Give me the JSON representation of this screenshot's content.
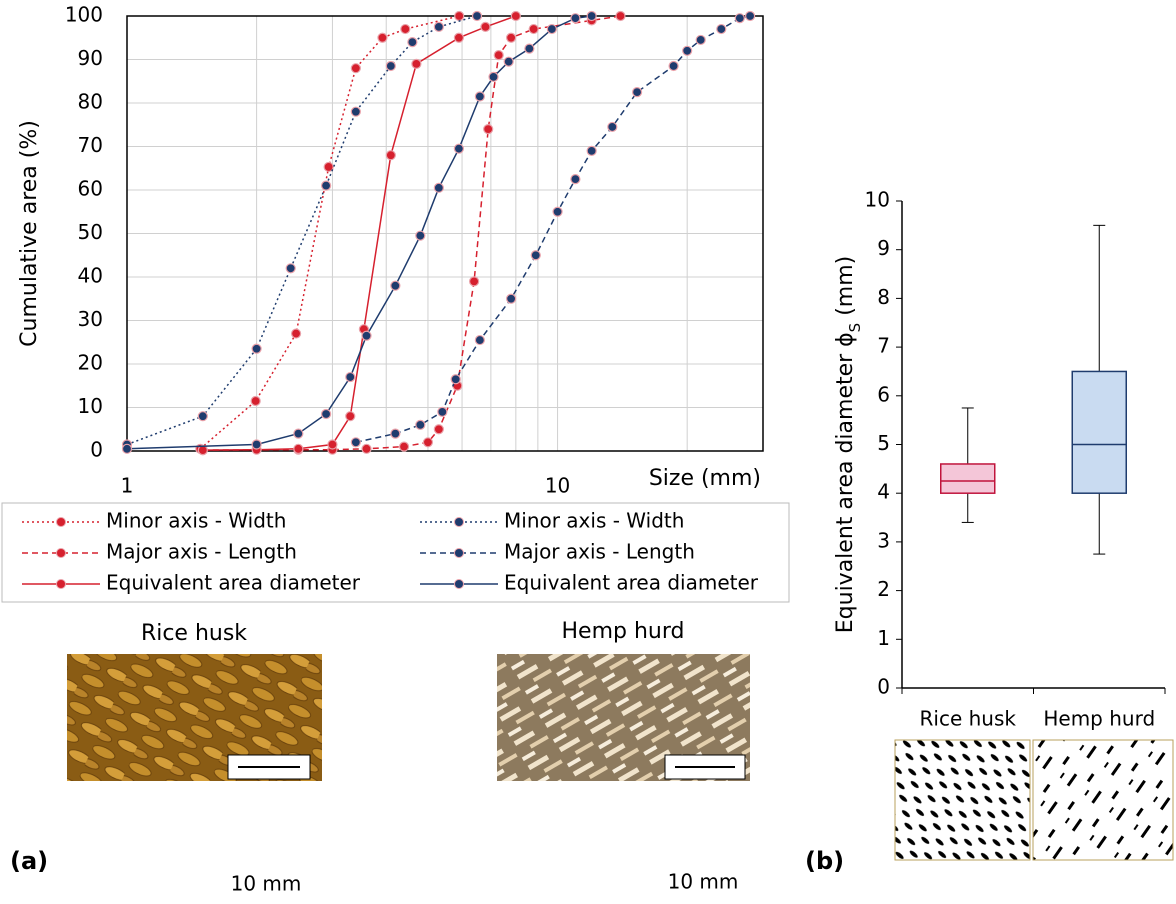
{
  "chart_data": [
    {
      "type": "line",
      "xscale": "log",
      "ylabel": "Cumulative area (%)",
      "xlabel": "Size (mm)",
      "xlim": [
        1,
        30
      ],
      "xticks": [
        1,
        10
      ],
      "xgrid": [
        2,
        3,
        4,
        5,
        6,
        7,
        8,
        9,
        20,
        30
      ],
      "ylim": [
        0,
        100
      ],
      "yticks": [
        0,
        10,
        20,
        30,
        40,
        50,
        60,
        70,
        80,
        90,
        100
      ],
      "grid": true,
      "series": [
        {
          "name": "Minor axis - Width",
          "color": "#d6202e",
          "dash": "dotted",
          "x": [
            1.48,
            1.99,
            2.47,
            2.94,
            3.4,
            3.92,
            4.43,
            5.91
          ],
          "values": [
            0.5,
            11.5,
            27,
            65.3,
            88,
            95,
            97,
            100
          ]
        },
        {
          "name": "Major axis - Length",
          "color": "#d6202e",
          "dash": "dashed",
          "x": [
            1.5,
            2.5,
            3,
            3.6,
            4.4,
            5,
            5.3,
            5.85,
            6.4,
            6.9,
            7.3,
            7.8,
            8.8,
            12,
            14
          ],
          "values": [
            0.2,
            0.3,
            0.3,
            0.5,
            1,
            2,
            5,
            15,
            39,
            74,
            91,
            95,
            97,
            99,
            100
          ]
        },
        {
          "name": "Equivalent area diameter",
          "color": "#d6202e",
          "dash": "solid",
          "x": [
            1.5,
            2,
            2.5,
            3,
            3.3,
            3.55,
            4.1,
            4.7,
            5.9,
            6.8,
            8
          ],
          "values": [
            0.2,
            0.3,
            0.5,
            1.5,
            8,
            28,
            68,
            89,
            95,
            97.5,
            100
          ]
        },
        {
          "name": "Minor axis - Width",
          "color": "#1f3c6e",
          "dash": "dotted",
          "x": [
            1,
            1.5,
            2,
            2.4,
            2.9,
            3.4,
            4.1,
            4.6,
            5.3,
            6.5
          ],
          "values": [
            1.5,
            8,
            23.5,
            42,
            61,
            78,
            88.5,
            94,
            97.5,
            100
          ]
        },
        {
          "name": "Major axis - Length",
          "color": "#1f3c6e",
          "dash": "dashed",
          "x": [
            3.4,
            4.2,
            4.8,
            5.4,
            5.8,
            6.6,
            7.8,
            8.9,
            10,
            11,
            12,
            13.4,
            15.3,
            18.6,
            20,
            21.5,
            24,
            26.5,
            28
          ],
          "values": [
            2,
            4,
            6,
            9,
            16.5,
            25.5,
            35,
            45,
            55,
            62.5,
            69,
            74.5,
            82.5,
            88.5,
            92,
            94.5,
            97,
            99.5,
            100
          ]
        },
        {
          "name": "Equivalent area diameter",
          "color": "#1f3c6e",
          "dash": "solid",
          "x": [
            1,
            2,
            2.5,
            2.9,
            3.3,
            3.6,
            4.2,
            4.8,
            5.3,
            5.9,
            6.6,
            7.1,
            7.7,
            8.6,
            9.7,
            11,
            12
          ],
          "values": [
            0.5,
            1.5,
            4,
            8.5,
            17,
            26.5,
            38,
            49.5,
            60.5,
            69.5,
            81.5,
            86,
            89.5,
            92.5,
            97,
            99.5,
            100
          ]
        }
      ]
    },
    {
      "type": "box",
      "ylabel_parts": [
        "Equivalent area diameter ϕ",
        "S",
        " (mm)"
      ],
      "categories": [
        "Rice husk",
        "Hemp hurd"
      ],
      "ylim": [
        0,
        10
      ],
      "yticks": [
        0,
        1,
        2,
        3,
        4,
        5,
        6,
        7,
        8,
        9,
        10
      ],
      "boxes": [
        {
          "min": 3.4,
          "q1": 4.0,
          "median": 4.25,
          "q3": 4.6,
          "max": 5.75,
          "fill": "#f4c6d8",
          "color": "#c0143c"
        },
        {
          "min": 2.75,
          "q1": 4.0,
          "median": 5.0,
          "q3": 6.5,
          "max": 9.5,
          "fill": "#c9dbf1",
          "color": "#1f3c6e"
        }
      ]
    }
  ],
  "panels": {
    "a": "(a)",
    "b": "(b)"
  },
  "images": [
    {
      "caption": "Rice husk",
      "color": "#c0143c",
      "scale": "10 mm"
    },
    {
      "caption": "Hemp hurd",
      "color": "#1f3c6e",
      "scale": "10 mm"
    }
  ]
}
